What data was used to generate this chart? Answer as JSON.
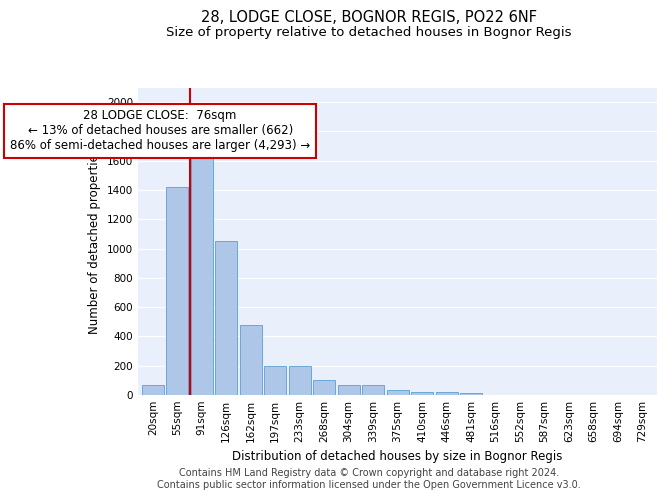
{
  "title_line1": "28, LODGE CLOSE, BOGNOR REGIS, PO22 6NF",
  "title_line2": "Size of property relative to detached houses in Bognor Regis",
  "xlabel": "Distribution of detached houses by size in Bognor Regis",
  "ylabel": "Number of detached properties",
  "bar_labels": [
    "20sqm",
    "55sqm",
    "91sqm",
    "126sqm",
    "162sqm",
    "197sqm",
    "233sqm",
    "268sqm",
    "304sqm",
    "339sqm",
    "375sqm",
    "410sqm",
    "446sqm",
    "481sqm",
    "516sqm",
    "552sqm",
    "587sqm",
    "623sqm",
    "658sqm",
    "694sqm",
    "729sqm"
  ],
  "bar_values": [
    70,
    1420,
    1630,
    1050,
    480,
    200,
    200,
    105,
    65,
    65,
    35,
    20,
    20,
    15,
    0,
    0,
    0,
    0,
    0,
    0,
    0
  ],
  "bar_color": "#aec6e8",
  "bar_edge_color": "#5a9fd4",
  "vline_color": "#cc0000",
  "annotation_text": "28 LODGE CLOSE:  76sqm\n← 13% of detached houses are smaller (662)\n86% of semi-detached houses are larger (4,293) →",
  "annotation_box_color": "#ffffff",
  "annotation_box_edge": "#cc0000",
  "ylim": [
    0,
    2100
  ],
  "yticks": [
    0,
    200,
    400,
    600,
    800,
    1000,
    1200,
    1400,
    1600,
    1800,
    2000
  ],
  "bg_color": "#eaf0fb",
  "grid_color": "#ffffff",
  "footer_line1": "Contains HM Land Registry data © Crown copyright and database right 2024.",
  "footer_line2": "Contains public sector information licensed under the Open Government Licence v3.0.",
  "title_fontsize": 10.5,
  "subtitle_fontsize": 9.5,
  "axis_label_fontsize": 8.5,
  "tick_fontsize": 7.5,
  "annotation_fontsize": 8.5,
  "footer_fontsize": 7.0
}
